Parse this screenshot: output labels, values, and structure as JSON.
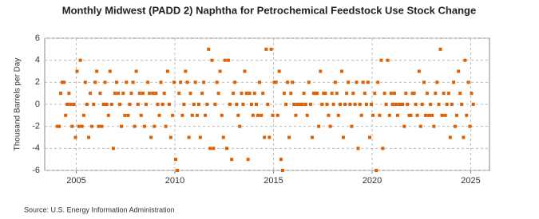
{
  "chart_data": {
    "type": "scatter",
    "title": "Monthly Midwest (PADD 2) Naphtha for Petrochemical Feedstock Use Stock Change",
    "y_label": "Thousand Barrels per Day",
    "source": "Source: U.S. Energy Information Administration",
    "color": "#e06000",
    "grid": true,
    "xlim": [
      2003.4,
      2025.95
    ],
    "ylim": [
      -6,
      6
    ],
    "xticks": [
      2005,
      2010,
      2015,
      2020,
      2025
    ],
    "yticks": [
      -6,
      -4,
      -2,
      0,
      2,
      4,
      6
    ],
    "x": [
      2004.04,
      2004.13,
      2004.21,
      2004.29,
      2004.38,
      2004.46,
      2004.54,
      2004.63,
      2004.71,
      2004.79,
      2004.88,
      2004.96,
      2005.04,
      2005.13,
      2005.21,
      2005.29,
      2005.38,
      2005.46,
      2005.54,
      2005.63,
      2005.71,
      2005.79,
      2005.88,
      2005.96,
      2006.04,
      2006.13,
      2006.21,
      2006.29,
      2006.38,
      2006.46,
      2006.54,
      2006.63,
      2006.71,
      2006.79,
      2006.88,
      2006.96,
      2007.04,
      2007.13,
      2007.21,
      2007.29,
      2007.38,
      2007.46,
      2007.54,
      2007.63,
      2007.71,
      2007.79,
      2007.88,
      2007.96,
      2008.04,
      2008.13,
      2008.21,
      2008.29,
      2008.38,
      2008.46,
      2008.54,
      2008.63,
      2008.71,
      2008.79,
      2008.88,
      2008.96,
      2009.04,
      2009.13,
      2009.21,
      2009.29,
      2009.38,
      2009.46,
      2009.54,
      2009.63,
      2009.71,
      2009.79,
      2009.88,
      2009.96,
      2010.04,
      2010.13,
      2010.21,
      2010.29,
      2010.38,
      2010.46,
      2010.54,
      2010.63,
      2010.71,
      2010.79,
      2010.88,
      2010.96,
      2011.04,
      2011.13,
      2011.21,
      2011.29,
      2011.38,
      2011.46,
      2011.54,
      2011.63,
      2011.71,
      2011.79,
      2011.88,
      2011.96,
      2012.04,
      2012.13,
      2012.21,
      2012.29,
      2012.38,
      2012.46,
      2012.54,
      2012.63,
      2012.71,
      2012.79,
      2012.88,
      2012.96,
      2013.04,
      2013.13,
      2013.21,
      2013.29,
      2013.38,
      2013.46,
      2013.54,
      2013.63,
      2013.71,
      2013.79,
      2013.88,
      2013.96,
      2014.04,
      2014.13,
      2014.21,
      2014.29,
      2014.38,
      2014.46,
      2014.54,
      2014.63,
      2014.71,
      2014.79,
      2014.88,
      2014.96,
      2015.04,
      2015.13,
      2015.21,
      2015.29,
      2015.38,
      2015.46,
      2015.54,
      2015.63,
      2015.71,
      2015.79,
      2015.88,
      2015.96,
      2016.04,
      2016.13,
      2016.21,
      2016.29,
      2016.38,
      2016.46,
      2016.54,
      2016.63,
      2016.71,
      2016.79,
      2016.88,
      2016.96,
      2017.04,
      2017.13,
      2017.21,
      2017.29,
      2017.38,
      2017.46,
      2017.54,
      2017.63,
      2017.71,
      2017.79,
      2017.88,
      2017.96,
      2018.04,
      2018.13,
      2018.21,
      2018.29,
      2018.38,
      2018.46,
      2018.54,
      2018.63,
      2018.71,
      2018.79,
      2018.88,
      2018.96,
      2019.04,
      2019.13,
      2019.21,
      2019.29,
      2019.38,
      2019.46,
      2019.54,
      2019.63,
      2019.71,
      2019.79,
      2019.88,
      2019.96,
      2020.04,
      2020.13,
      2020.21,
      2020.29,
      2020.38,
      2020.46,
      2020.54,
      2020.63,
      2020.71,
      2020.79,
      2020.88,
      2020.96,
      2021.04,
      2021.13,
      2021.21,
      2021.29,
      2021.38,
      2021.46,
      2021.54,
      2021.63,
      2021.71,
      2021.79,
      2021.88,
      2021.96,
      2022.04,
      2022.13,
      2022.21,
      2022.29,
      2022.38,
      2022.46,
      2022.54,
      2022.63,
      2022.71,
      2022.79,
      2022.88,
      2022.96,
      2023.04,
      2023.13,
      2023.21,
      2023.29,
      2023.38,
      2023.46,
      2023.54,
      2023.63,
      2023.71,
      2023.79,
      2023.88,
      2023.96,
      2024.04,
      2024.13,
      2024.21,
      2024.29,
      2024.38,
      2024.46,
      2024.54,
      2024.63,
      2024.71,
      2024.79,
      2024.88,
      2024.96,
      2025.04,
      2025.13
    ],
    "values": [
      -2,
      -2,
      1,
      2,
      2,
      -1,
      0,
      1,
      0,
      -2,
      0,
      -3,
      3,
      -2,
      4,
      -2,
      -1,
      2,
      0,
      -3,
      1,
      -2,
      0,
      2,
      3,
      -2,
      1,
      -2,
      0,
      2,
      0,
      -1,
      3,
      0,
      -4,
      1,
      2,
      1,
      0,
      -2,
      1,
      -1,
      2,
      -1,
      0,
      1,
      2,
      -2,
      3,
      0,
      1,
      -1,
      1,
      -2,
      0,
      2,
      1,
      -3,
      1,
      -2,
      1,
      0,
      -1,
      2,
      0,
      1,
      -2,
      3,
      0,
      -3,
      -1,
      2,
      -5,
      -6,
      1,
      2,
      -1,
      0,
      3,
      2,
      -3,
      1,
      -1,
      0,
      2,
      -1,
      0,
      -3,
      1,
      2,
      -1,
      0,
      5,
      -4,
      4,
      -4,
      0,
      2,
      1,
      3,
      -1,
      -3,
      4,
      -4,
      4,
      0,
      -5,
      1,
      2,
      0,
      -1,
      -2,
      1,
      0,
      3,
      1,
      -5,
      1,
      0,
      -1,
      1,
      0,
      -1,
      2,
      -1,
      1,
      -3,
      5,
      0,
      -3,
      5,
      -1,
      2,
      2,
      -1,
      3,
      -5,
      -6,
      1,
      0,
      2,
      -3,
      1,
      2,
      0,
      -1,
      0,
      0,
      0,
      0,
      1,
      0,
      -1,
      2,
      0,
      -3,
      1,
      1,
      1,
      -2,
      3,
      0,
      1,
      1,
      0,
      -1,
      -2,
      1,
      0,
      2,
      1,
      -1,
      0,
      3,
      -3,
      0,
      1,
      2,
      0,
      -2,
      1,
      0,
      2,
      -4,
      0,
      -1,
      2,
      1,
      0,
      2,
      -3,
      0,
      -1,
      1,
      -6,
      2,
      -1,
      4,
      -4,
      1,
      0,
      4,
      -1,
      1,
      0,
      1,
      0,
      -1,
      0,
      0,
      0,
      -2,
      1,
      0,
      -1,
      -1,
      1,
      1,
      0,
      -1,
      3,
      -2,
      0,
      2,
      -1,
      1,
      -1,
      0,
      -1,
      -2,
      1,
      2,
      0,
      5,
      -1,
      1,
      -1,
      0,
      1,
      -3,
      0,
      2,
      -2,
      -1,
      3,
      1,
      0,
      -3,
      4,
      -1,
      2,
      -2,
      1,
      0
    ]
  }
}
